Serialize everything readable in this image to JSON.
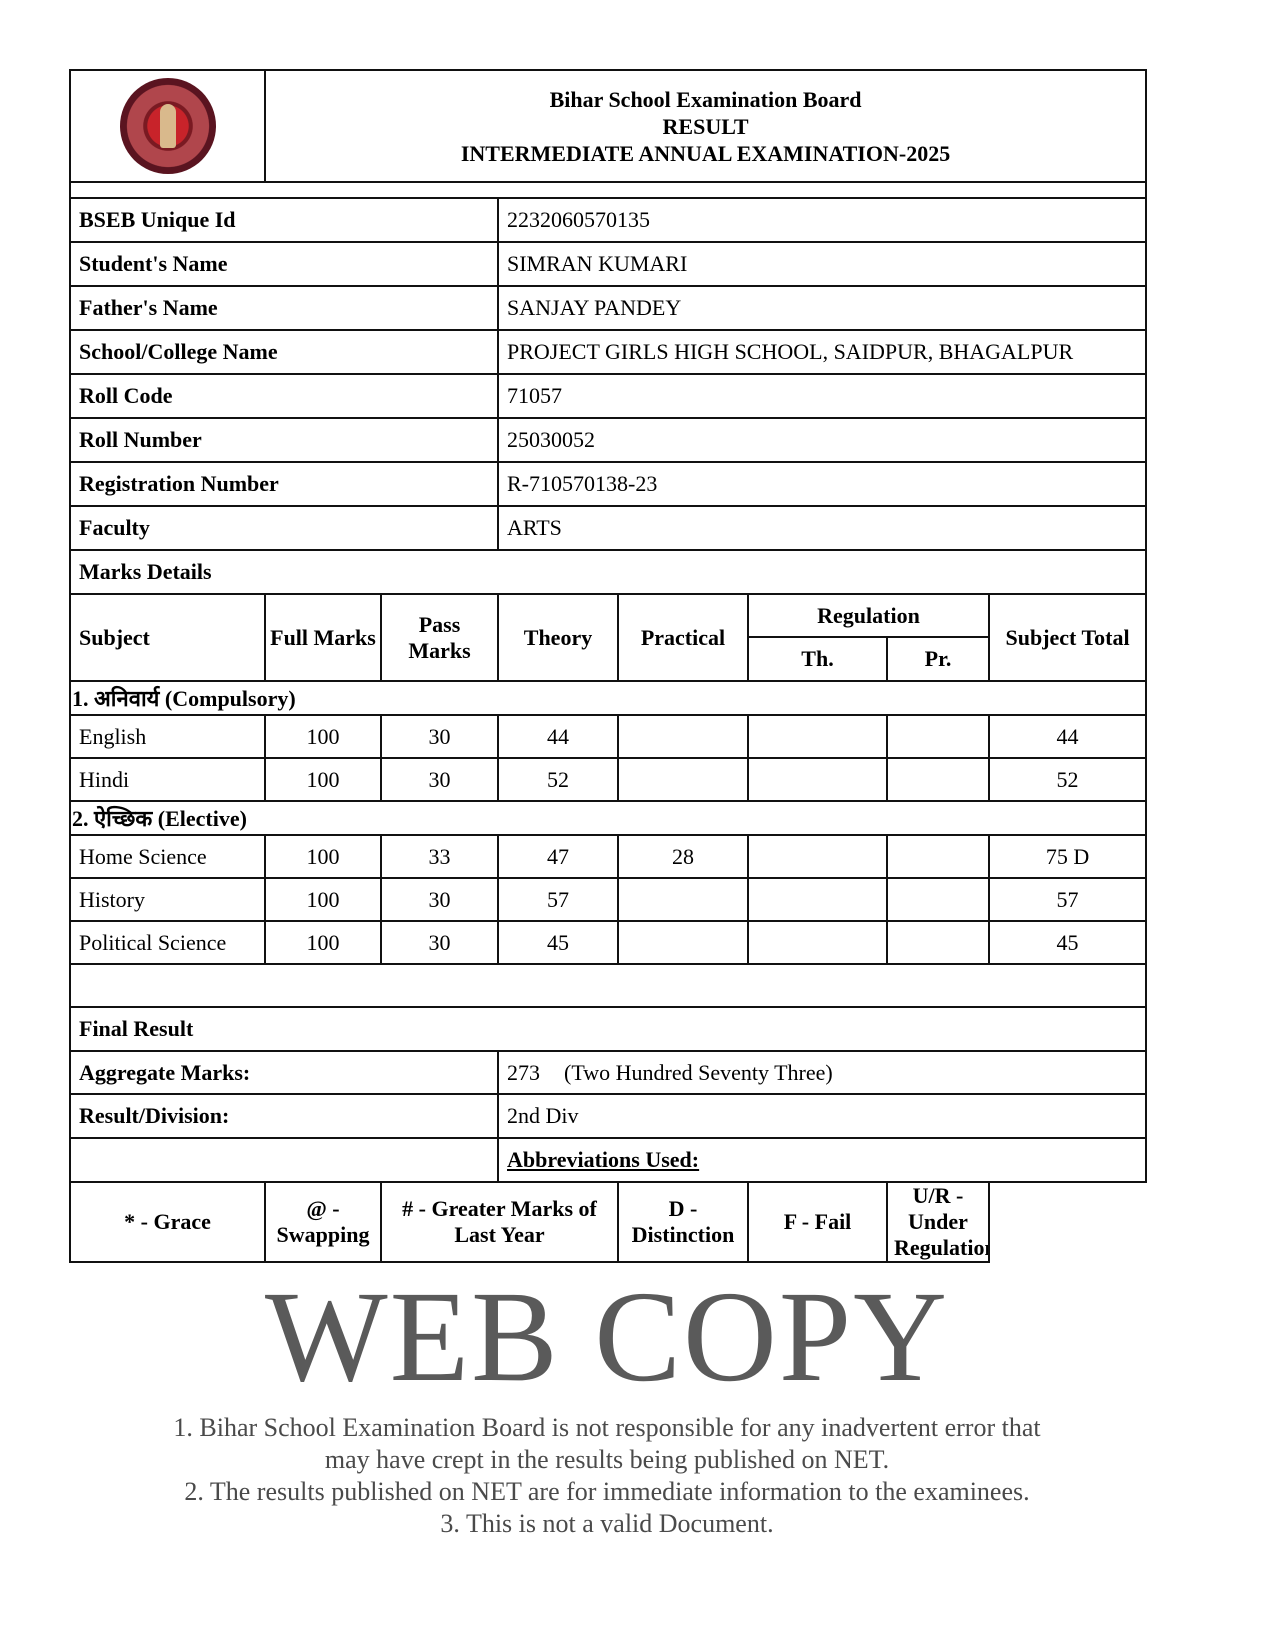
{
  "header": {
    "logo": "Bihar School Examination Board seal",
    "board": "Bihar School Examination Board",
    "doc_type": "RESULT",
    "exam": "INTERMEDIATE ANNUAL EXAMINATION-2025"
  },
  "student": [
    {
      "label": "BSEB Unique Id",
      "value": "2232060570135"
    },
    {
      "label": "Student's Name",
      "value": "SIMRAN KUMARI"
    },
    {
      "label": "Father's Name",
      "value": "SANJAY PANDEY"
    },
    {
      "label": "School/College Name",
      "value": "PROJECT GIRLS HIGH SCHOOL, SAIDPUR, BHAGALPUR"
    },
    {
      "label": "Roll Code",
      "value": "71057"
    },
    {
      "label": "Roll Number",
      "value": "25030052"
    },
    {
      "label": "Registration Number",
      "value": "R-710570138-23"
    },
    {
      "label": "Faculty",
      "value": "ARTS"
    }
  ],
  "marks": {
    "title": "Marks Details",
    "headers": {
      "subject": "Subject",
      "full": "Full Marks",
      "pass": "Pass Marks",
      "theory": "Theory",
      "practical": "Practical",
      "regulation": "Regulation",
      "reg_th": "Th.",
      "reg_pr": "Pr.",
      "total": "Subject Total"
    },
    "sections": [
      {
        "title": "1. अनिवार्य (Compulsory)",
        "rows": [
          {
            "subject": "English",
            "full": "100",
            "pass": "30",
            "theory": "44",
            "practical": "",
            "reg_th": "",
            "reg_pr": "",
            "total": "44"
          },
          {
            "subject": "Hindi",
            "full": "100",
            "pass": "30",
            "theory": "52",
            "practical": "",
            "reg_th": "",
            "reg_pr": "",
            "total": "52"
          }
        ]
      },
      {
        "title": "2. ऐच्छिक (Elective)",
        "rows": [
          {
            "subject": "Home Science",
            "full": "100",
            "pass": "33",
            "theory": "47",
            "practical": "28",
            "reg_th": "",
            "reg_pr": "",
            "total": "75 D"
          },
          {
            "subject": "History",
            "full": "100",
            "pass": "30",
            "theory": "57",
            "practical": "",
            "reg_th": "",
            "reg_pr": "",
            "total": "57"
          },
          {
            "subject": "Political Science",
            "full": "100",
            "pass": "30",
            "theory": "45",
            "practical": "",
            "reg_th": "",
            "reg_pr": "",
            "total": "45"
          }
        ]
      }
    ]
  },
  "final": {
    "title": "Final Result",
    "aggregate_label": "Aggregate Marks:",
    "aggregate_value": "273",
    "aggregate_words": "(Two Hundred Seventy Three)",
    "division_label": "Result/Division:",
    "division_value": "2nd Div"
  },
  "abbreviations": {
    "title": "Abbreviations Used:",
    "items": [
      "* - Grace",
      "@ - Swapping",
      "# - Greater Marks of Last Year",
      "D - Distinction",
      "F - Fail",
      "U/R - Under Regulation"
    ]
  },
  "watermark": {
    "main": "WEB COPY",
    "notes": [
      "1. Bihar School Examination Board is not responsible for any inadvertent error that",
      "may have crept in the results being published on NET.",
      "2. The results published on NET are for immediate information to the examinees.",
      "3. This is not a valid Document."
    ]
  }
}
